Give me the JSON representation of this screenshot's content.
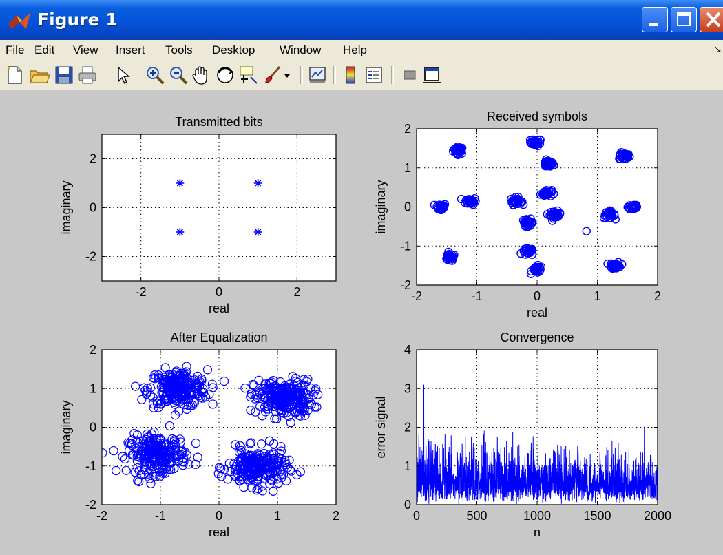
{
  "window": {
    "title": "Figure 1"
  },
  "menu": [
    "File",
    "Edit",
    "View",
    "Insert",
    "Tools",
    "Desktop",
    "Window",
    "Help"
  ],
  "toolbar": {
    "buttons": [
      "new-figure",
      "open-file",
      "save",
      "print",
      "edit-plot",
      "zoom-in",
      "zoom-out",
      "pan",
      "rotate-3d",
      "data-cursor",
      "brush",
      "brush-menu",
      "link-plot",
      "insert-colorbar",
      "insert-legend",
      "hide-plot-tools",
      "show-plot-tools"
    ]
  },
  "colors": {
    "series": "#0000ff",
    "titlebar": "#0553d8",
    "figure_bg": "#c8c8c8",
    "axes_bg": "#ffffff"
  },
  "chart_data": [
    {
      "type": "scatter",
      "title": "Transmitted bits",
      "xlabel": "real",
      "ylabel": "imaginary",
      "xlim": [
        -3,
        3
      ],
      "ylim": [
        -3,
        3
      ],
      "xticks": [
        -2,
        0,
        2
      ],
      "yticks": [
        -2,
        0,
        2
      ],
      "grid": true,
      "marker": "star",
      "points": [
        [
          -1,
          1
        ],
        [
          1,
          1
        ],
        [
          -1,
          -1
        ],
        [
          1,
          -1
        ]
      ]
    },
    {
      "type": "scatter",
      "title": "Received symbols",
      "xlabel": "real",
      "ylabel": "imaginary",
      "xlim": [
        -2,
        2
      ],
      "ylim": [
        -2,
        2
      ],
      "xticks": [
        -2,
        -1,
        0,
        1,
        2
      ],
      "yticks": [
        -2,
        -1,
        0,
        1,
        2
      ],
      "grid": true,
      "marker": "circle",
      "cluster_centers": [
        [
          -1.3,
          1.45
        ],
        [
          -0.02,
          1.65
        ],
        [
          0.18,
          1.1
        ],
        [
          1.45,
          1.3
        ],
        [
          -1.6,
          0.0
        ],
        [
          -1.1,
          0.15
        ],
        [
          -0.35,
          0.15
        ],
        [
          0.15,
          0.35
        ],
        [
          0.3,
          -0.2
        ],
        [
          -0.15,
          -0.4
        ],
        [
          1.2,
          -0.2
        ],
        [
          1.6,
          0.0
        ],
        [
          -1.45,
          -1.3
        ],
        [
          -0.15,
          -1.15
        ],
        [
          0.0,
          -1.6
        ],
        [
          1.3,
          -1.5
        ]
      ],
      "outliers": [
        [
          0.82,
          -0.62
        ]
      ]
    },
    {
      "type": "scatter",
      "title": "After Equalization",
      "xlabel": "real",
      "ylabel": "imaginary",
      "xlim": [
        -2,
        2
      ],
      "ylim": [
        -2,
        2
      ],
      "xticks": [
        -2,
        -1,
        0,
        1,
        2
      ],
      "yticks": [
        -2,
        -1,
        0,
        1,
        2
      ],
      "grid": true,
      "marker": "circle",
      "cluster_centers": [
        [
          -0.7,
          1.0
        ],
        [
          1.1,
          0.75
        ],
        [
          -1.05,
          -0.7
        ],
        [
          0.65,
          -1.05
        ]
      ]
    },
    {
      "type": "line",
      "title": "Convergence",
      "xlabel": "n",
      "ylabel": "error signal",
      "xlim": [
        0,
        2000
      ],
      "ylim": [
        0,
        4
      ],
      "xticks": [
        0,
        500,
        1000,
        1500,
        2000
      ],
      "yticks": [
        0,
        1,
        2,
        3,
        4
      ],
      "grid": true,
      "n_samples": 2000,
      "peak_value": 3.1
    }
  ]
}
